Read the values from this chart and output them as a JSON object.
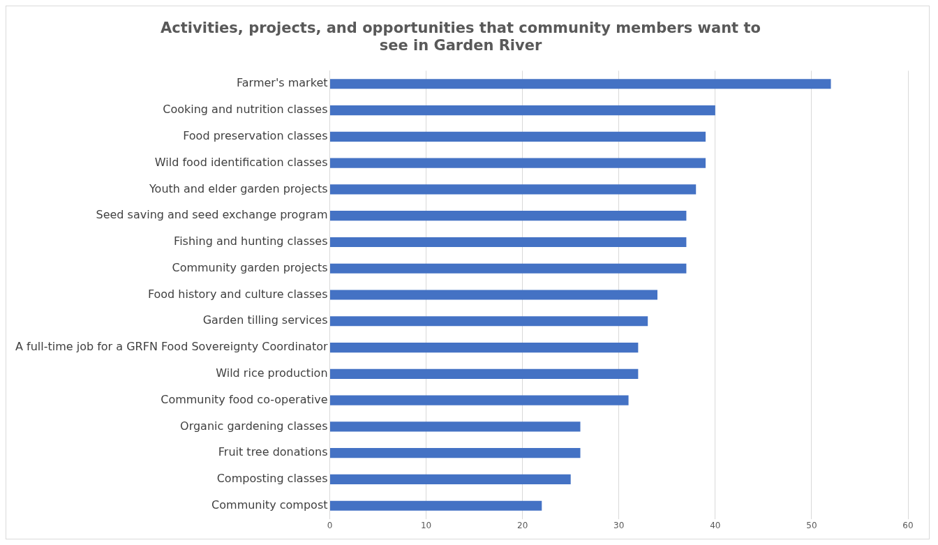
{
  "chart_data": {
    "type": "bar",
    "orientation": "horizontal",
    "title": "Activities, projects, and opportunities that community members want to see in Garden River",
    "categories": [
      "Farmer's market",
      "Cooking and nutrition classes",
      "Food preservation classes",
      "Wild food identification classes",
      "Youth and elder garden projects",
      "Seed saving and seed exchange program",
      "Fishing and hunting classes",
      "Community garden projects",
      "Food history and culture classes",
      "Garden tilling services",
      "A full-time job for a GRFN Food Sovereignty Coordinator",
      "Wild rice production",
      "Community food co-operative",
      "Organic gardening classes",
      "Fruit tree donations",
      "Composting classes",
      "Community compost"
    ],
    "values": [
      52,
      40,
      39,
      39,
      38,
      37,
      37,
      37,
      34,
      33,
      32,
      32,
      31,
      26,
      26,
      25,
      22
    ],
    "color": "#4472c4",
    "xlim": [
      0,
      60
    ],
    "xticks": [
      0,
      10,
      20,
      30,
      40,
      50,
      60
    ],
    "grid": "x",
    "legend": false
  }
}
